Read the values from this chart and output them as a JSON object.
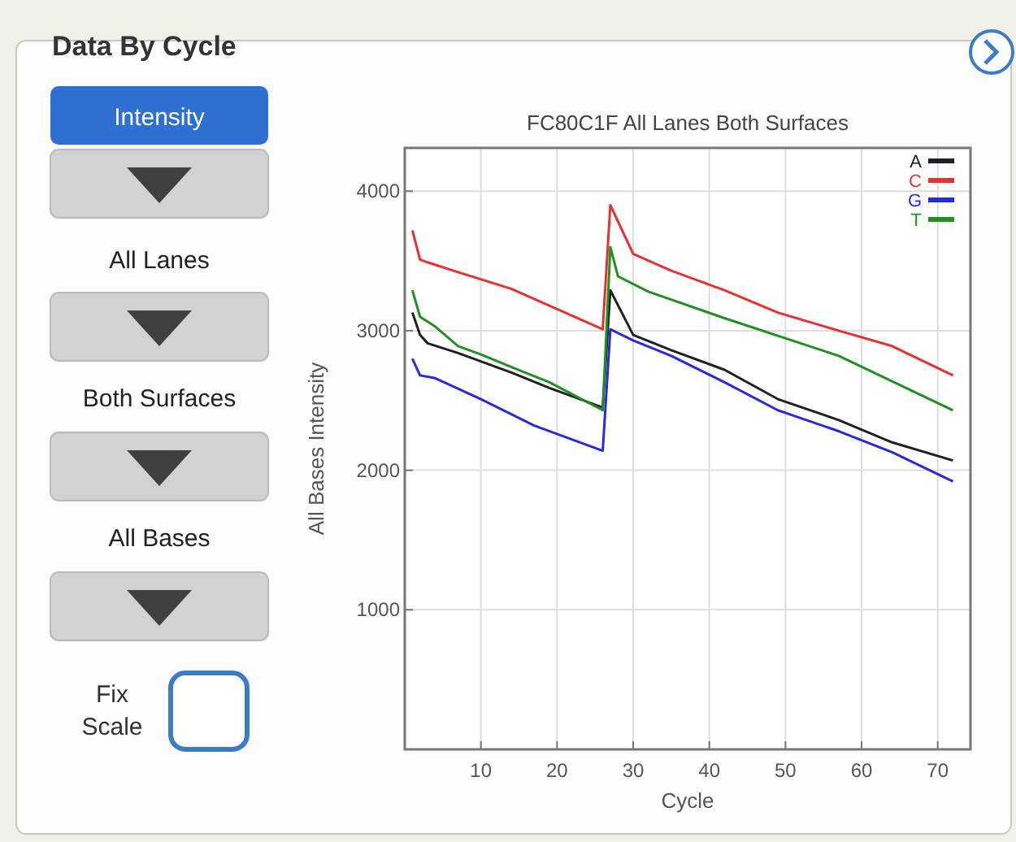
{
  "chart_data": {
    "type": "line",
    "title": "FC80C1F All Lanes Both Surfaces",
    "xlabel": "Cycle",
    "ylabel": "All Bases Intensity",
    "annotations": [
      "Data By Cycle",
      "Intensity",
      "All Lanes",
      "Both Surfaces",
      "All Bases",
      "Fix Scale"
    ],
    "xlim": [
      0,
      74.3
    ],
    "ylim": [
      0,
      4310
    ],
    "xticks": [
      10,
      20,
      30,
      40,
      50,
      60,
      70
    ],
    "yticks": [
      1000,
      2000,
      3000,
      4000
    ],
    "grid": true,
    "legend": "top right",
    "marker": "none",
    "line_style": "solid",
    "series": [
      {
        "name": "A",
        "color": "#202020",
        "x": [
          1,
          2,
          3,
          7,
          14,
          19,
          26,
          27,
          30,
          35,
          42,
          49,
          57,
          64,
          72
        ],
        "values": [
          3130,
          2970,
          2910,
          2840,
          2700,
          2590,
          2450,
          3290,
          2970,
          2860,
          2720,
          2510,
          2360,
          2200,
          2070
        ]
      },
      {
        "name": "C",
        "color": "#e83030",
        "x": [
          1,
          2,
          3,
          7,
          14,
          19,
          26,
          27,
          30,
          35,
          42,
          49,
          57,
          64,
          72
        ],
        "values": [
          3720,
          3510,
          3490,
          3420,
          3300,
          3180,
          3010,
          3900,
          3550,
          3430,
          3290,
          3130,
          3000,
          2890,
          2680
        ]
      },
      {
        "name": "G",
        "color": "#2828e0",
        "x": [
          1,
          2,
          4,
          10,
          17,
          26,
          27,
          30,
          35,
          42,
          49,
          57,
          64,
          72
        ],
        "values": [
          2800,
          2680,
          2660,
          2510,
          2320,
          2140,
          3010,
          2930,
          2820,
          2630,
          2430,
          2280,
          2130,
          1920
        ]
      },
      {
        "name": "T",
        "color": "#209020",
        "x": [
          1,
          2,
          4,
          7,
          10,
          14,
          19,
          26,
          27,
          28,
          32,
          42,
          57,
          72
        ],
        "values": [
          3290,
          3100,
          3030,
          2890,
          2830,
          2740,
          2630,
          2430,
          3600,
          3390,
          3280,
          3090,
          2820,
          2430
        ]
      }
    ]
  }
}
